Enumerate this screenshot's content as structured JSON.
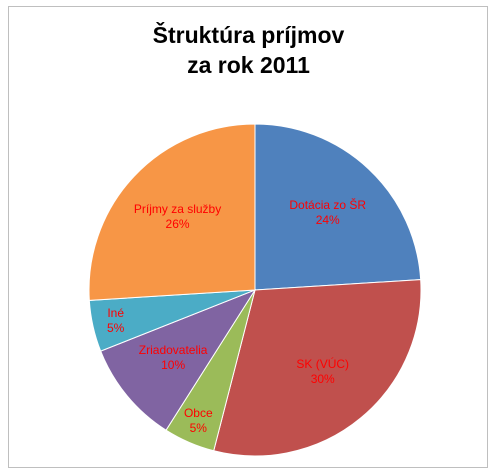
{
  "chart_data": {
    "type": "pie",
    "title": [
      "Štruktúra príjmov",
      "za rok 2011"
    ],
    "categories": [
      "Dotácia zo ŠR",
      "SK (VÚC)",
      "Obce",
      "Zriadovatelia",
      "Iné",
      "Príjmy za služby"
    ],
    "values": [
      24,
      30,
      5,
      10,
      5,
      26
    ],
    "value_labels": [
      "24%",
      "30%",
      "5%",
      "10%",
      "5%",
      "26%"
    ],
    "colors": [
      "#4f81bd",
      "#c0504d",
      "#9bbb59",
      "#8064a2",
      "#4bacc6",
      "#f79646"
    ],
    "label_color": "#ff0000"
  }
}
